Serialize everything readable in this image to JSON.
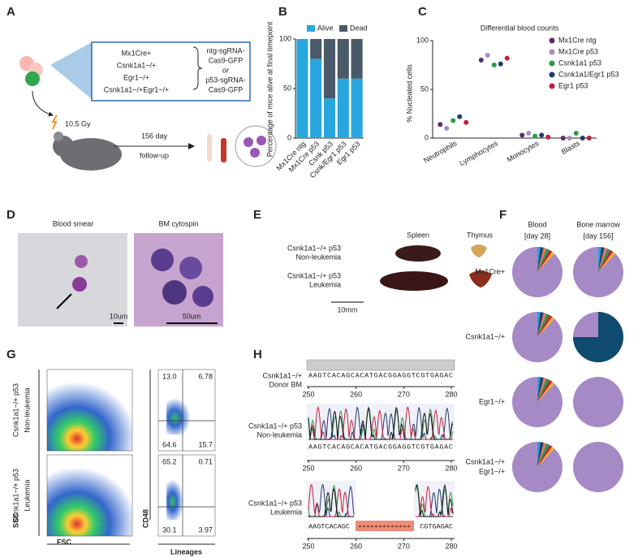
{
  "panels": {
    "A": {
      "letter": "A",
      "genotypes": [
        "Mx1Cre+",
        "Csnk1a1−/+",
        "Egr1−/+",
        "Csnk1a1−/+Egr1−/+"
      ],
      "constructs": [
        "ntg-sgRNA-",
        "Cas9-GFP",
        "or",
        "p53-sgRNA-",
        "Cas9-GFP"
      ],
      "dose": "10.5 Gy",
      "followup": [
        "156 day",
        "follow-up"
      ]
    },
    "D": {
      "letter": "D",
      "titles": [
        "Blood smear",
        "BM cytospin"
      ],
      "scales": [
        "10um",
        "50um"
      ]
    },
    "E": {
      "letter": "E",
      "columns": [
        "Spleen",
        "Thymus"
      ],
      "rows": [
        [
          "Csnk1a1−/+ p53",
          "Non-leukemia"
        ],
        [
          "Csnk1a1−/+ p53",
          "Leukemia"
        ]
      ],
      "scale": "10mm"
    },
    "F": {
      "letter": "F",
      "columns": [
        [
          "Blood",
          "[day 28]"
        ],
        [
          "Bone marrow",
          "[day 156]"
        ]
      ],
      "rows": [
        [
          "Mx1Cre+"
        ],
        [
          "Csnk1a1−/+"
        ],
        [
          "Egr1−/+"
        ],
        [
          "Csnk1a1−/+",
          "Egr1−/+"
        ]
      ]
    },
    "G": {
      "letter": "G",
      "rows": [
        [
          "Csnk1a1−/+ p53",
          "Non-leukemia"
        ],
        [
          "Csnk1a1−/+ p53",
          "Leukemia"
        ]
      ],
      "axes": [
        "FSC",
        "SSC",
        "Lineages",
        "CD48"
      ],
      "quadrants": [
        [
          "13.0",
          "6.78",
          "64.6",
          "15.7"
        ],
        [
          "65.2",
          "0.71",
          "30.1",
          "3.97"
        ]
      ]
    },
    "H": {
      "letter": "H",
      "rows": [
        [
          "Csnk1a1−/+",
          "Donor BM"
        ],
        [
          "Csnk1a1−/+ p53",
          "Non-leukemia"
        ],
        [
          "Csnk1a1−/+ p53",
          "Leukemia"
        ]
      ],
      "sequence": "AAGTCACAGCACATGACGGAGGTCGTGAGAC",
      "leukemia_sequence": [
        "AAGTCACAGC",
        "CGTGAGAC"
      ],
      "xlim": [
        250,
        280
      ],
      "xticks": [
        250,
        260,
        270,
        280
      ]
    }
  },
  "chart_data": [
    {
      "type": "stacked-bar",
      "letter": "B",
      "ylabel": "Percentage of mice alive at final timepoint",
      "categories": [
        "Mx1Cre ntg",
        "Mx1Cre p53",
        "Csnk p53",
        "Csnk/Egr1 p53",
        "Egr1 p53"
      ],
      "series": [
        {
          "name": "Alive",
          "color": "#29a6df",
          "values": [
            100,
            80,
            40,
            60,
            60
          ]
        },
        {
          "name": "Dead",
          "color": "#4b5a69",
          "values": [
            0,
            20,
            60,
            40,
            40
          ]
        }
      ],
      "ylim": [
        0,
        100
      ],
      "yticks": [
        0,
        50,
        100
      ]
    },
    {
      "type": "dot",
      "letter": "C",
      "title": "Differential blood counts",
      "ylabel": "% Nucleated cells",
      "categories": [
        "Neutrophils",
        "Lymphocytes",
        "Monocytes",
        "Blasts"
      ],
      "series": [
        {
          "name": "Mx1Cre ntg",
          "color": "#5b2c6f",
          "values": [
            14,
            80,
            3,
            0
          ]
        },
        {
          "name": "Mx1Cre p53",
          "color": "#a88cc8",
          "values": [
            10,
            85,
            5,
            0
          ]
        },
        {
          "name": "Csnk1a1 p53",
          "color": "#2a9a48",
          "values": [
            18,
            75,
            2,
            5
          ]
        },
        {
          "name": "Csnk1a1/Egr1 p53",
          "color": "#1e3a6b",
          "values": [
            22,
            76,
            3,
            0
          ]
        },
        {
          "name": "Egr1 p53",
          "color": "#c0213a",
          "values": [
            16,
            82,
            1,
            0
          ]
        }
      ],
      "ylim": [
        0,
        100
      ],
      "yticks": [
        0,
        50,
        100
      ]
    }
  ]
}
